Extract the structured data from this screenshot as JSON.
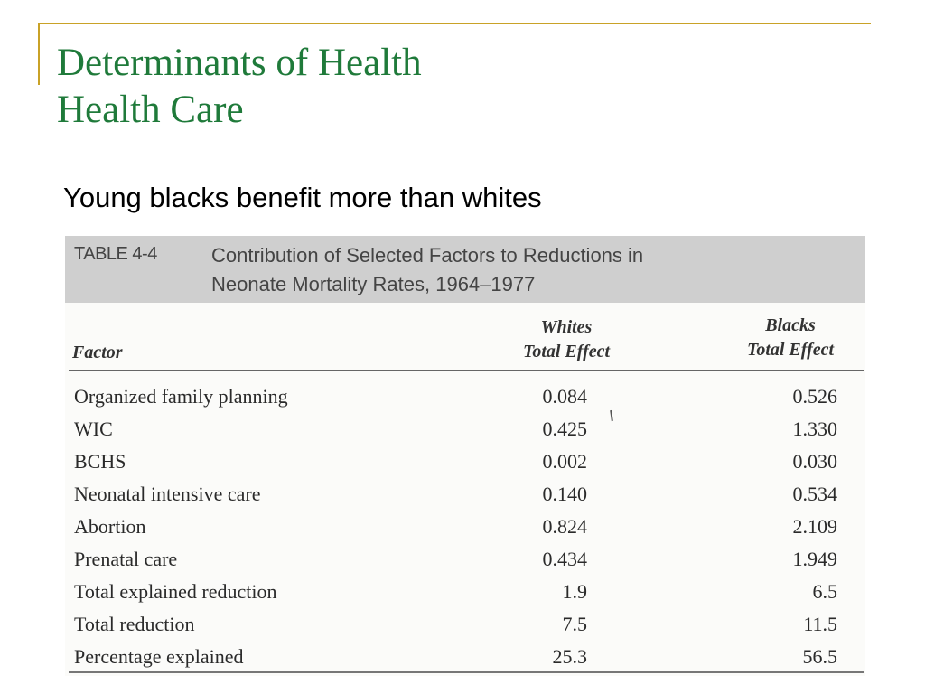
{
  "title": {
    "line1": "Determinants of Health",
    "line2": "Health Care"
  },
  "subtitle": "Young blacks benefit more than whites",
  "table": {
    "label": "TABLE 4-4",
    "caption_line1": "Contribution of Selected Factors to Reductions in",
    "caption_line2": "Neonate Mortality Rates, 1964–1977",
    "headers": {
      "factor": "Factor",
      "whites_line1": "Whites",
      "whites_line2": "Total Effect",
      "blacks_line1": "Blacks",
      "blacks_line2": "Total Effect"
    },
    "rows": [
      {
        "factor": "Organized family planning",
        "whites": "0.084",
        "blacks": "0.526"
      },
      {
        "factor": "WIC",
        "whites": "0.425",
        "blacks": "1.330"
      },
      {
        "factor": "BCHS",
        "whites": "0.002",
        "blacks": "0.030"
      },
      {
        "factor": "Neonatal intensive care",
        "whites": "0.140",
        "blacks": "0.534"
      },
      {
        "factor": "Abortion",
        "whites": "0.824",
        "blacks": "2.109"
      },
      {
        "factor": "Prenatal care",
        "whites": "0.434",
        "blacks": "1.949"
      },
      {
        "factor": "Total explained reduction",
        "whites": "1.9",
        "blacks": "6.5"
      },
      {
        "factor": "Total reduction",
        "whites": "7.5",
        "blacks": "11.5"
      },
      {
        "factor": "Percentage explained",
        "whites": "25.3",
        "blacks": "56.5"
      }
    ]
  },
  "colors": {
    "title": "#1f7a3a",
    "accent_rule": "#c9a227",
    "caption_band": "#cfcfcf"
  }
}
